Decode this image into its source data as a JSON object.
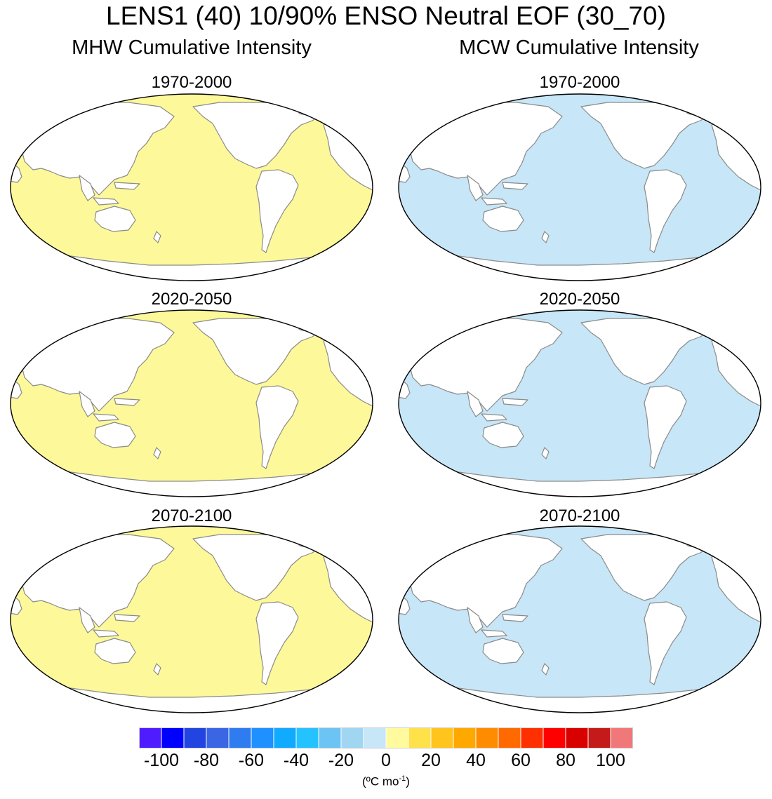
{
  "title": "LENS1 (40) 10/90% ENSO Neutral EOF (30_70)",
  "columns": {
    "left": {
      "title": "MHW Cumulative Intensity",
      "fill": "#fdf89a",
      "accent": "#fde24a"
    },
    "right": {
      "title": "MCW Cumulative Intensity",
      "fill": "#c7e6f7",
      "accent": "#a5d6f2"
    }
  },
  "panels": {
    "left": [
      {
        "period": "1970-2000"
      },
      {
        "period": "2020-2050"
      },
      {
        "period": "2070-2100"
      }
    ],
    "right": [
      {
        "period": "1970-2000"
      },
      {
        "period": "2020-2050"
      },
      {
        "period": "2070-2100"
      }
    ]
  },
  "colorbar": {
    "colors": [
      "#4f1cff",
      "#0000ff",
      "#2244e0",
      "#3a66e4",
      "#2e7cf0",
      "#1e90ff",
      "#10aaff",
      "#24c3ff",
      "#6cc4f4",
      "#a0d6f2",
      "#c7e6f7",
      "#fffa9e",
      "#ffe14a",
      "#ffc51e",
      "#ffa800",
      "#ff8c00",
      "#ff6a00",
      "#ff3000",
      "#ff0000",
      "#d90000",
      "#c41a1a",
      "#f07878"
    ],
    "ticks": [
      "-100",
      "-80",
      "-60",
      "-40",
      "-20",
      "0",
      "20",
      "40",
      "60",
      "80",
      "100"
    ]
  },
  "units": {
    "main": "(ºC mo",
    "exp": "-1",
    "close": ")"
  }
}
